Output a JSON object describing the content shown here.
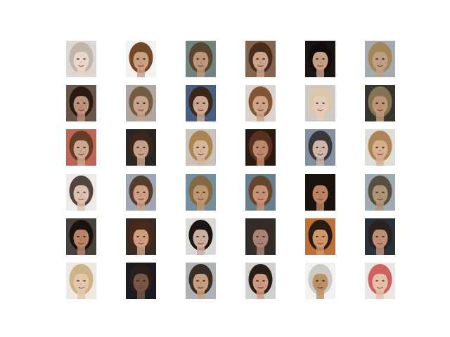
{
  "grid": {
    "rows": 6,
    "cols": 6
  },
  "faces": [
    {
      "bg": "#d8d2cc",
      "hair": "#b8aca0",
      "skin": "#e6d2c4",
      "hair_top": true,
      "bright": true
    },
    {
      "bg": "#ffffff",
      "hair": "#7a4c2c",
      "skin": "#d6a88a",
      "hair_top": true,
      "bright": false
    },
    {
      "bg": "#7a8c84",
      "hair": "#5c4a34",
      "skin": "#c8a082",
      "hair_top": true,
      "bright": false
    },
    {
      "bg": "#8a6a54",
      "hair": "#4c3020",
      "skin": "#d8ac92",
      "hair_top": true,
      "bright": false
    },
    {
      "bg": "#1c1614",
      "hair": "#120c0a",
      "skin": "#d2a88c",
      "hair_top": true,
      "bright": false
    },
    {
      "bg": "#aeb4b8",
      "hair": "#b08c5c",
      "skin": "#c8a890",
      "hair_top": true,
      "bright": false
    },
    {
      "bg": "#6e5a4c",
      "hair": "#2c1c14",
      "skin": "#c89880",
      "hair_top": true,
      "bright": false
    },
    {
      "bg": "#b8b0a8",
      "hair": "#7c6048",
      "skin": "#d2ac94",
      "hair_top": true,
      "bright": false
    },
    {
      "bg": "#4c6488",
      "hair": "#3c2a1c",
      "skin": "#d6b09a",
      "hair_top": true,
      "bright": false
    },
    {
      "bg": "#e6e0d8",
      "hair": "#8c5a38",
      "skin": "#d8ac92",
      "hair_top": true,
      "bright": false
    },
    {
      "bg": "#c8c2bc",
      "hair": "#d8c0a0",
      "skin": "#e2c4b0",
      "hair_top": true,
      "bright": true
    },
    {
      "bg": "#3c3830",
      "hair": "#8c7a5c",
      "skin": "#c8a07c",
      "hair_top": true,
      "bright": false
    },
    {
      "bg": "#c86c5c",
      "hair": "#6c4028",
      "skin": "#d8b09c",
      "hair_top": true,
      "bright": false
    },
    {
      "bg": "#2c2824",
      "hair": "#3c2a1c",
      "skin": "#d2a890",
      "hair_top": true,
      "bright": false
    },
    {
      "bg": "#d6ccc2",
      "hair": "#b48c58",
      "skin": "#e2c0a4",
      "hair_top": true,
      "bright": false
    },
    {
      "bg": "#2c1c14",
      "hair": "#5c3420",
      "skin": "#c89072",
      "hair_top": true,
      "bright": false
    },
    {
      "bg": "#8c98a8",
      "hair": "#3c3a40",
      "skin": "#d8c0b4",
      "hair_top": true,
      "bright": false
    },
    {
      "bg": "#ece8e4",
      "hair": "#b88c5c",
      "skin": "#e2b898",
      "hair_top": true,
      "bright": false
    },
    {
      "bg": "#ece8e6",
      "hair": "#3c2c24",
      "skin": "#dab8a4",
      "hair_top": true,
      "bright": true
    },
    {
      "bg": "#a8b0c0",
      "hair": "#5c4030",
      "skin": "#d8a88c",
      "hair_top": true,
      "bright": false
    },
    {
      "bg": "#7c96a4",
      "hair": "#8c7048",
      "skin": "#c8a078",
      "hair_top": true,
      "bright": false
    },
    {
      "bg": "#6c8894",
      "hair": "#6c4830",
      "skin": "#d09a7c",
      "hair_top": true,
      "bright": false
    },
    {
      "bg": "#1c1410",
      "hair": "#1c120c",
      "skin": "#c88a68",
      "hair_top": true,
      "bright": false
    },
    {
      "bg": "#a8b4bc",
      "hair": "#5c5444",
      "skin": "#b89c80",
      "hair_top": true,
      "bright": false
    },
    {
      "bg": "#4c4640",
      "hair": "#1c1410",
      "skin": "#c08c6c",
      "hair_top": true,
      "bright": false
    },
    {
      "bg": "#3c2c24",
      "hair": "#4c2c1c",
      "skin": "#d8a888",
      "hair_top": true,
      "bright": false
    },
    {
      "bg": "#e8e4e0",
      "hair": "#1c1818",
      "skin": "#d6b8a8",
      "hair_top": true,
      "bright": false
    },
    {
      "bg": "#34302c",
      "hair": "#3c2c24",
      "skin": "#b08c7c",
      "hair_top": true,
      "bright": false
    },
    {
      "bg": "#c8783c",
      "hair": "#2c1c14",
      "skin": "#d8a070",
      "hair_top": true,
      "bright": false
    },
    {
      "bg": "#2c3440",
      "hair": "#2c2420",
      "skin": "#c8987c",
      "hair_top": true,
      "bright": false
    },
    {
      "bg": "#ece6dc",
      "hair": "#c8a878",
      "skin": "#e2c0a0",
      "hair_top": true,
      "bright": true
    },
    {
      "bg": "#1c1c24",
      "hair": "#2c201c",
      "skin": "#7c5c4c",
      "hair_top": true,
      "bright": false
    },
    {
      "bg": "#b8bcc0",
      "hair": "#3c3028",
      "skin": "#d0a888",
      "hair_top": true,
      "bright": false
    },
    {
      "bg": "#dcdcdc",
      "hair": "#2c2018",
      "skin": "#d8a48c",
      "hair_top": true,
      "bright": false
    },
    {
      "bg": "#ffffff",
      "hair": "#d8d4d0",
      "skin": "#c8986c",
      "hair_top": true,
      "bright": false
    },
    {
      "bg": "#e8e4e0",
      "hair": "#c84c4c",
      "skin": "#e2b8a0",
      "hair_top": true,
      "bright": true
    }
  ]
}
